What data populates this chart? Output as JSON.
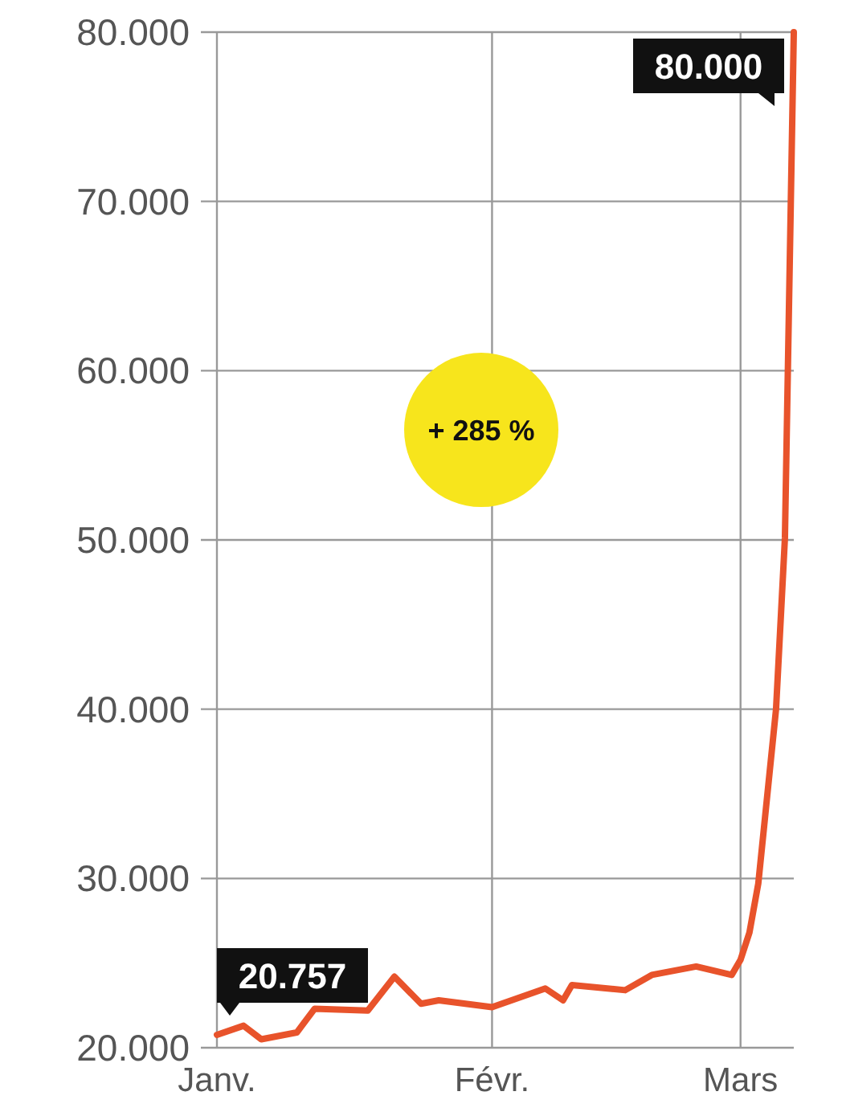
{
  "chart_data": {
    "type": "line",
    "x": [
      "--01-01",
      "--01-04",
      "--01-06",
      "--01-10",
      "--01-12",
      "--01-18",
      "--01-21",
      "--01-24",
      "--01-26",
      "--02-01",
      "--02-07",
      "--02-09",
      "--02-10",
      "--02-16",
      "--02-19",
      "--02-24",
      "--02-28",
      "--03-01",
      "--03-02",
      "--03-03",
      "--03-05",
      "--03-06",
      "--03-07"
    ],
    "series": [
      {
        "color": "#e8532b",
        "values": [
          20757,
          21300,
          20500,
          20900,
          22300,
          22200,
          24200,
          22600,
          22800,
          22400,
          23500,
          22800,
          23700,
          23400,
          24300,
          24800,
          24300,
          25200,
          26800,
          29700,
          40000,
          50100,
          80000
        ]
      }
    ],
    "xlim": [
      "--01-01",
      "--03-07"
    ],
    "xticks": [
      {
        "value": "--01-01",
        "label": "Janv."
      },
      {
        "value": "--02-01",
        "label": "Févr."
      },
      {
        "value": "--03-01",
        "label": "Mars"
      }
    ],
    "ylim": [
      20000,
      80000
    ],
    "yticks": [
      {
        "value": 20000,
        "label": "20.000"
      },
      {
        "value": 30000,
        "label": "30.000"
      },
      {
        "value": 40000,
        "label": "40.000"
      },
      {
        "value": 50000,
        "label": "50.000"
      },
      {
        "value": 60000,
        "label": "60.000"
      },
      {
        "value": 70000,
        "label": "70.000"
      },
      {
        "value": 80000,
        "label": "80.000"
      }
    ],
    "grid": true,
    "marker": "none",
    "line_style": "solid",
    "annotations": [
      {
        "text": "20.757",
        "x": "--01-01",
        "y": 20757
      },
      {
        "text": "80.000",
        "x": "--03-07",
        "y": 80000
      },
      "+ 285 %"
    ]
  }
}
